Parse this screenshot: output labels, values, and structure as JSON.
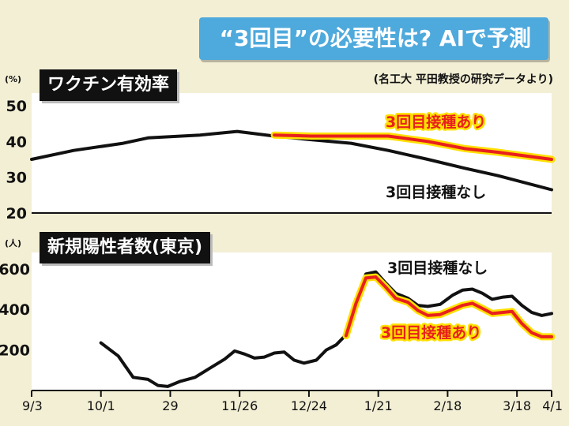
{
  "headline": "“3回目”の必要性は? AIで予測",
  "source": "(名工大 平田教授の研究データより)",
  "colors": {
    "background": "#f3efd5",
    "panel": "#ffffff",
    "headline_bg": "#4ea9dc",
    "with_booster": "#e8201e",
    "with_booster_glow": "#ffe000",
    "without_booster": "#111111"
  },
  "chart_data": [
    {
      "type": "line",
      "title": "ワクチン有効率",
      "ylabel": "(%)",
      "ylim": [
        20,
        50
      ],
      "yticks": [
        20,
        30,
        40,
        50
      ],
      "x_span": [
        "2021-09-03",
        "2022-04-01"
      ],
      "series": [
        {
          "name": "3回目接種なし",
          "points": [
            [
              "2021-09-03",
              35
            ],
            [
              "2021-09-20",
              37.5
            ],
            [
              "2021-10-10",
              39.5
            ],
            [
              "2021-10-20",
              41
            ],
            [
              "2021-11-10",
              41.8
            ],
            [
              "2021-11-25",
              42.8
            ],
            [
              "2021-12-10",
              41.5
            ],
            [
              "2021-12-25",
              40.5
            ],
            [
              "2022-01-10",
              39.5
            ],
            [
              "2022-01-25",
              37.5
            ],
            [
              "2022-02-10",
              35
            ],
            [
              "2022-02-25",
              32.5
            ],
            [
              "2022-03-10",
              30.5
            ],
            [
              "2022-04-01",
              26.5
            ]
          ]
        },
        {
          "name": "3回目接種あり",
          "points": [
            [
              "2021-12-10",
              41.8
            ],
            [
              "2021-12-25",
              41.5
            ],
            [
              "2022-01-10",
              41.5
            ],
            [
              "2022-01-25",
              41.5
            ],
            [
              "2022-02-10",
              40
            ],
            [
              "2022-02-25",
              38
            ],
            [
              "2022-03-10",
              37
            ],
            [
              "2022-04-01",
              35
            ]
          ]
        }
      ]
    },
    {
      "type": "line",
      "title": "新規陽性者数(東京)",
      "ylabel": "(人)",
      "ylim": [
        0,
        650
      ],
      "yticks": [
        200,
        400,
        600
      ],
      "x_span": [
        "2021-09-03",
        "2022-04-01"
      ],
      "xticks": [
        "9/3",
        "10/1",
        "29",
        "11/26",
        "12/24",
        "1/21",
        "2/18",
        "3/18",
        "4/1"
      ],
      "xtick_dates": [
        "2021-09-03",
        "2021-10-01",
        "2021-10-29",
        "2021-11-26",
        "2021-12-24",
        "2022-01-21",
        "2022-02-18",
        "2022-03-18",
        "2022-04-01"
      ],
      "series": [
        {
          "name": "3回目接種なし",
          "points": [
            [
              "2021-10-01",
              235
            ],
            [
              "2021-10-08",
              170
            ],
            [
              "2021-10-14",
              65
            ],
            [
              "2021-10-20",
              55
            ],
            [
              "2021-10-24",
              25
            ],
            [
              "2021-10-28",
              20
            ],
            [
              "2021-11-02",
              45
            ],
            [
              "2021-11-08",
              65
            ],
            [
              "2021-11-14",
              110
            ],
            [
              "2021-11-20",
              155
            ],
            [
              "2021-11-24",
              195
            ],
            [
              "2021-11-28",
              180
            ],
            [
              "2021-12-02",
              160
            ],
            [
              "2021-12-06",
              165
            ],
            [
              "2021-12-10",
              185
            ],
            [
              "2021-12-14",
              190
            ],
            [
              "2021-12-18",
              150
            ],
            [
              "2021-12-22",
              135
            ],
            [
              "2021-12-27",
              150
            ],
            [
              "2021-12-31",
              200
            ],
            [
              "2022-01-04",
              225
            ],
            [
              "2022-01-08",
              275
            ],
            [
              "2022-01-12",
              440
            ],
            [
              "2022-01-16",
              575
            ],
            [
              "2022-01-20",
              585
            ],
            [
              "2022-01-24",
              530
            ],
            [
              "2022-01-28",
              480
            ],
            [
              "2022-02-02",
              455
            ],
            [
              "2022-02-06",
              420
            ],
            [
              "2022-02-10",
              415
            ],
            [
              "2022-02-15",
              425
            ],
            [
              "2022-02-20",
              470
            ],
            [
              "2022-02-24",
              495
            ],
            [
              "2022-02-28",
              500
            ],
            [
              "2022-03-04",
              480
            ],
            [
              "2022-03-08",
              450
            ],
            [
              "2022-03-12",
              460
            ],
            [
              "2022-03-16",
              465
            ],
            [
              "2022-03-20",
              420
            ],
            [
              "2022-03-24",
              385
            ],
            [
              "2022-03-28",
              370
            ],
            [
              "2022-04-01",
              380
            ]
          ]
        },
        {
          "name": "3回目接種あり",
          "points": [
            [
              "2022-01-08",
              270
            ],
            [
              "2022-01-12",
              430
            ],
            [
              "2022-01-16",
              555
            ],
            [
              "2022-01-20",
              560
            ],
            [
              "2022-01-24",
              510
            ],
            [
              "2022-01-28",
              455
            ],
            [
              "2022-02-02",
              435
            ],
            [
              "2022-02-06",
              395
            ],
            [
              "2022-02-10",
              370
            ],
            [
              "2022-02-15",
              375
            ],
            [
              "2022-02-20",
              400
            ],
            [
              "2022-02-24",
              420
            ],
            [
              "2022-02-28",
              430
            ],
            [
              "2022-03-04",
              405
            ],
            [
              "2022-03-08",
              380
            ],
            [
              "2022-03-12",
              385
            ],
            [
              "2022-03-16",
              390
            ],
            [
              "2022-03-20",
              330
            ],
            [
              "2022-03-24",
              285
            ],
            [
              "2022-03-28",
              265
            ],
            [
              "2022-04-01",
              265
            ]
          ]
        }
      ]
    }
  ],
  "annotations": {
    "top_with": "3回目接種あり",
    "top_without": "3回目接種なし",
    "bottom_without": "3回目接種なし",
    "bottom_with": "3回目接種あり"
  }
}
